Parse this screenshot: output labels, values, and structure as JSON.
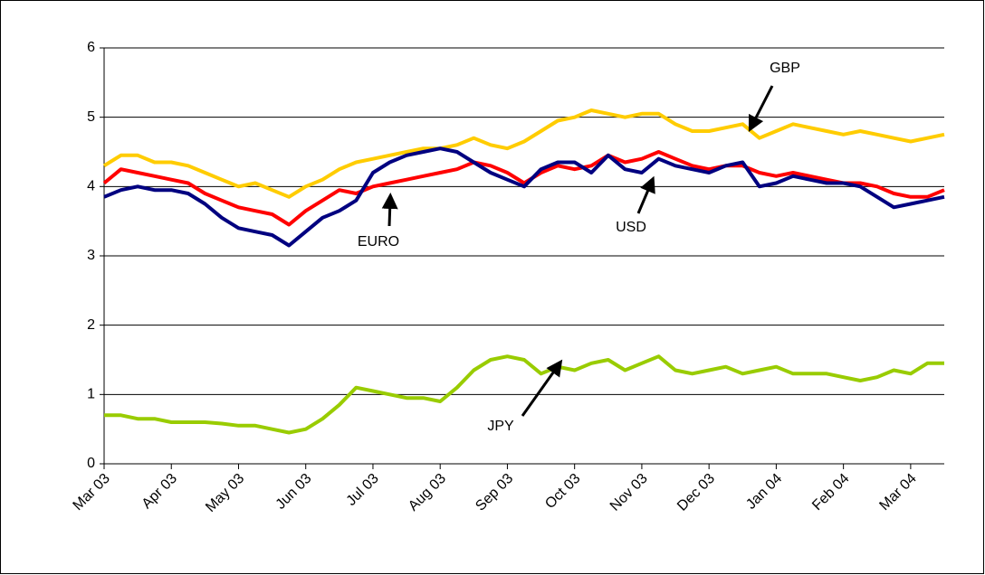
{
  "chart_data": {
    "type": "line",
    "categories": [
      "Mar 03",
      null,
      null,
      null,
      "Apr 03",
      null,
      null,
      null,
      "May 03",
      null,
      null,
      null,
      "Jun 03",
      null,
      null,
      null,
      "Jul 03",
      null,
      null,
      null,
      "Aug 03",
      null,
      null,
      null,
      "Sep 03",
      null,
      null,
      null,
      "Oct 03",
      null,
      null,
      null,
      "Nov 03",
      null,
      null,
      null,
      "Dec 03",
      null,
      null,
      null,
      "Jan 04",
      null,
      null,
      null,
      "Feb 04",
      null,
      null,
      null,
      "Mar 04",
      null,
      null
    ],
    "series": [
      {
        "name": "GBP",
        "color": "#ffcc00",
        "values": [
          4.3,
          4.45,
          4.45,
          4.35,
          4.35,
          4.3,
          4.2,
          4.1,
          4.0,
          4.05,
          3.95,
          3.85,
          4.0,
          4.1,
          4.25,
          4.35,
          4.4,
          4.45,
          4.5,
          4.55,
          4.55,
          4.6,
          4.7,
          4.6,
          4.55,
          4.65,
          4.8,
          4.95,
          5.0,
          5.1,
          5.05,
          5.0,
          5.05,
          5.05,
          4.9,
          4.8,
          4.8,
          4.85,
          4.9,
          4.7,
          4.8,
          4.9,
          4.85,
          4.8,
          4.75,
          4.8,
          4.75,
          4.7,
          4.65,
          4.7,
          4.75
        ]
      },
      {
        "name": "EURO",
        "color": "#ff0000",
        "values": [
          4.05,
          4.25,
          4.2,
          4.15,
          4.1,
          4.05,
          3.9,
          3.8,
          3.7,
          3.65,
          3.6,
          3.45,
          3.65,
          3.8,
          3.95,
          3.9,
          4.0,
          4.05,
          4.1,
          4.15,
          4.2,
          4.25,
          4.35,
          4.3,
          4.2,
          4.05,
          4.2,
          4.3,
          4.25,
          4.3,
          4.45,
          4.35,
          4.4,
          4.5,
          4.4,
          4.3,
          4.25,
          4.3,
          4.3,
          4.2,
          4.15,
          4.2,
          4.15,
          4.1,
          4.05,
          4.05,
          4.0,
          3.9,
          3.85,
          3.85,
          3.95
        ]
      },
      {
        "name": "USD",
        "color": "#000080",
        "values": [
          3.85,
          3.95,
          4.0,
          3.95,
          3.95,
          3.9,
          3.75,
          3.55,
          3.4,
          3.35,
          3.3,
          3.15,
          3.35,
          3.55,
          3.65,
          3.8,
          4.2,
          4.35,
          4.45,
          4.5,
          4.55,
          4.5,
          4.35,
          4.2,
          4.1,
          4.0,
          4.25,
          4.35,
          4.35,
          4.2,
          4.45,
          4.25,
          4.2,
          4.4,
          4.3,
          4.25,
          4.2,
          4.3,
          4.35,
          4.0,
          4.05,
          4.15,
          4.1,
          4.05,
          4.05,
          4.0,
          3.85,
          3.7,
          3.75,
          3.8,
          3.85
        ]
      },
      {
        "name": "JPY",
        "color": "#99cc00",
        "values": [
          0.7,
          0.7,
          0.65,
          0.65,
          0.6,
          0.6,
          0.6,
          0.58,
          0.55,
          0.55,
          0.5,
          0.45,
          0.5,
          0.65,
          0.85,
          1.1,
          1.05,
          1.0,
          0.95,
          0.95,
          0.9,
          1.1,
          1.35,
          1.5,
          1.55,
          1.5,
          1.3,
          1.4,
          1.35,
          1.45,
          1.5,
          1.35,
          1.45,
          1.55,
          1.35,
          1.3,
          1.35,
          1.4,
          1.3,
          1.35,
          1.4,
          1.3,
          1.3,
          1.3,
          1.25,
          1.2,
          1.25,
          1.35,
          1.3,
          1.45,
          1.45
        ]
      }
    ],
    "annotations": [
      "GBP",
      "EURO",
      "USD",
      "JPY"
    ],
    "ylim": [
      0,
      6
    ],
    "yticks": [
      0,
      1,
      2,
      3,
      4,
      5,
      6
    ],
    "grid": true
  }
}
